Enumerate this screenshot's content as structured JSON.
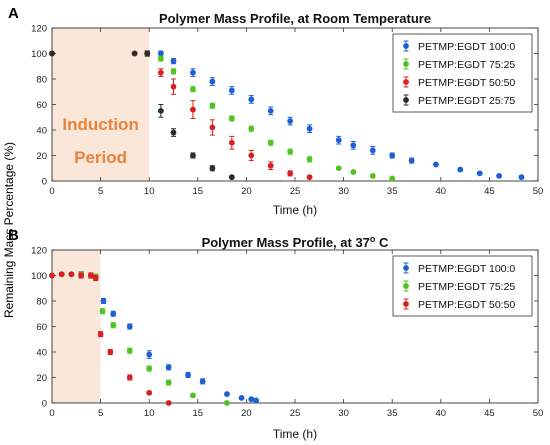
{
  "figure": {
    "shared_ylabel": "Remaining Mass Percentage (%)"
  },
  "colors": {
    "PETMP:EGDT 100:0": "#1f5fd6",
    "PETMP:EGDT 75:25": "#4fc41f",
    "PETMP:EGDT 50:50": "#d91f1f",
    "PETMP:EGDT 25:75": "#2b2b2b",
    "shade": "#fbe7da",
    "annotation": "#e8843a"
  },
  "chart_data": [
    {
      "panel": "A",
      "type": "scatter",
      "title": "Polymer Mass Profile, at Room Temperature",
      "xlabel": "Time (h)",
      "ylabel": "Remaining Mass Percentage (%)",
      "xlim": [
        0,
        50
      ],
      "ylim": [
        0,
        120
      ],
      "xticks": [
        "0",
        "5",
        "10",
        "15",
        "20",
        "25",
        "30",
        "35",
        "40",
        "45",
        "50"
      ],
      "yticks": [
        "0",
        "20",
        "40",
        "60",
        "80",
        "100",
        "120"
      ],
      "legend_position": "top-right",
      "shaded_region": {
        "x": [
          0,
          10
        ],
        "label_lines": [
          "Induction",
          "Period"
        ]
      },
      "series": [
        {
          "name": "PETMP:EGDT 100:0",
          "x": [
            0,
            8.5,
            9.8,
            11.2,
            12.5,
            14.5,
            16.5,
            18.5,
            20.5,
            22.5,
            24.5,
            26.5,
            29.5,
            31,
            33,
            35,
            37,
            39.5,
            42,
            44,
            46,
            48.3
          ],
          "y": [
            100,
            100,
            100,
            100,
            94,
            85,
            78,
            71,
            64,
            55,
            47,
            41,
            32,
            28,
            24,
            20,
            16,
            13,
            9,
            6,
            4,
            3
          ],
          "err": [
            0,
            0,
            2,
            2,
            2,
            3,
            3,
            3,
            3,
            3,
            3,
            3,
            3,
            3,
            3,
            2,
            2,
            1,
            1,
            1,
            1,
            1
          ]
        },
        {
          "name": "PETMP:EGDT 75:25",
          "x": [
            0,
            8.5,
            9.8,
            11.2,
            12.5,
            14.5,
            16.5,
            18.5,
            20.5,
            22.5,
            24.5,
            26.5,
            29.5,
            31,
            33,
            35
          ],
          "y": [
            100,
            100,
            100,
            96,
            86,
            72,
            59,
            49,
            41,
            30,
            23,
            17,
            10,
            7,
            4,
            2
          ],
          "err": [
            0,
            0,
            2,
            2,
            2,
            2,
            2,
            2,
            2,
            2,
            2,
            2,
            1,
            1,
            1,
            1
          ]
        },
        {
          "name": "PETMP:EGDT 50:50",
          "x": [
            0,
            8.5,
            9.8,
            11.2,
            12.5,
            14.5,
            16.5,
            18.5,
            20.5,
            22.5,
            24.5,
            26.5
          ],
          "y": [
            100,
            100,
            100,
            85,
            74,
            56,
            42,
            30,
            20,
            12,
            6,
            3
          ],
          "err": [
            0,
            0,
            2,
            3,
            6,
            7,
            6,
            5,
            4,
            3,
            2,
            1
          ]
        },
        {
          "name": "PETMP:EGDT 25:75",
          "x": [
            0,
            8.5,
            9.8,
            11.2,
            12.5,
            14.5,
            16.5,
            18.5
          ],
          "y": [
            100,
            100,
            100,
            55,
            38,
            20,
            10,
            3
          ],
          "err": [
            0,
            0,
            2,
            5,
            3,
            2,
            2,
            1
          ]
        }
      ]
    },
    {
      "panel": "B",
      "type": "scatter",
      "title": "Polymer Mass Profile, at 37",
      "title_superscript": "o",
      "title_suffix": " C",
      "xlabel": "Time (h)",
      "ylabel": "Remaining Mass Percentage (%)",
      "xlim": [
        0,
        50
      ],
      "ylim": [
        0,
        120
      ],
      "xticks": [
        "0",
        "5",
        "10",
        "15",
        "20",
        "25",
        "30",
        "35",
        "40",
        "45",
        "50"
      ],
      "yticks": [
        "0",
        "20",
        "40",
        "60",
        "80",
        "100",
        "120"
      ],
      "legend_position": "top-right",
      "shaded_region": {
        "x": [
          0,
          5
        ]
      },
      "series": [
        {
          "name": "PETMP:EGDT 100:0",
          "x": [
            0,
            1,
            2,
            3,
            4,
            4.5,
            5.3,
            6.3,
            8,
            10,
            12,
            14,
            15.5,
            18,
            19.5,
            20.5,
            21
          ],
          "y": [
            100,
            101,
            101,
            101,
            100,
            99,
            80,
            70,
            60,
            38,
            28,
            22,
            17,
            7,
            4,
            3,
            2
          ],
          "err": [
            0,
            1,
            1,
            2,
            2,
            2,
            2,
            2,
            2,
            3,
            2,
            2,
            2,
            1,
            1,
            1,
            1
          ]
        },
        {
          "name": "PETMP:EGDT 75:25",
          "x": [
            0,
            1,
            2,
            3,
            4,
            4.5,
            5.2,
            6.3,
            8,
            10,
            12,
            14.5,
            18
          ],
          "y": [
            100,
            101,
            101,
            101,
            100,
            99,
            72,
            61,
            41,
            27,
            16,
            6,
            0
          ],
          "err": [
            0,
            1,
            1,
            2,
            2,
            2,
            2,
            2,
            2,
            2,
            2,
            1,
            1
          ]
        },
        {
          "name": "PETMP:EGDT 50:50",
          "x": [
            0,
            1,
            2,
            3,
            4,
            4.5,
            5,
            6,
            8,
            10,
            12
          ],
          "y": [
            100,
            101,
            101,
            100,
            100,
            98,
            54,
            40,
            20,
            8,
            0
          ],
          "err": [
            0,
            1,
            1,
            2,
            2,
            2,
            2,
            2,
            2,
            1,
            1
          ]
        }
      ]
    }
  ]
}
